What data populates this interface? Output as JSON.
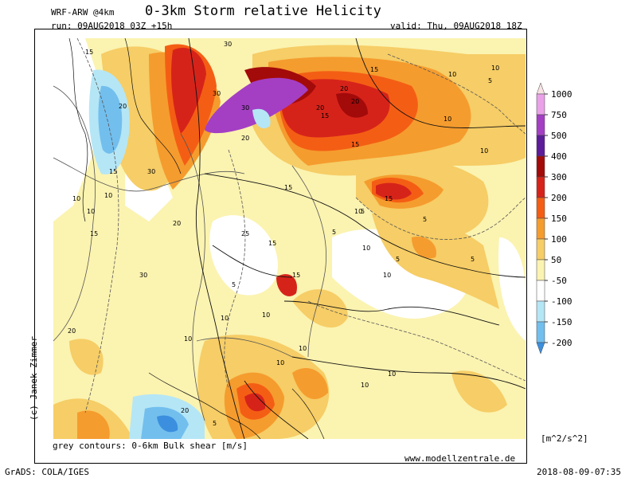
{
  "header": {
    "model": "WRF-ARW @4km",
    "title": "0-3km Storm relative Helicity",
    "run": "run: 09AUG2018 03Z +15h",
    "valid": "valid: Thu, 09AUG2018 18Z"
  },
  "footer": {
    "contours_note": "grey contours: 0-6km Bulk shear [m/s]",
    "website": "www.modellzentrale.de",
    "software": "GrADS: COLA/IGES",
    "timestamp": "2018-08-09-07:35",
    "credit": "(c) Janek Zimmer"
  },
  "colorbar": {
    "unit": "[m^2/s^2]",
    "levels": [
      "1000",
      "750",
      "500",
      "400",
      "300",
      "200",
      "150",
      "100",
      "50",
      "-50",
      "-100",
      "-150",
      "-200"
    ],
    "colors": [
      "#f7e3e4",
      "#eaa1e8",
      "#a43fc4",
      "#5d1c9a",
      "#a30a0a",
      "#d6231a",
      "#f45e14",
      "#f59c2e",
      "#f6cd66",
      "#fbf3b0",
      "#ffffff",
      "#b5e6f6",
      "#72bfee",
      "#3b8fde"
    ]
  },
  "contour_labels": [
    "30",
    "30",
    "30",
    "30",
    "30",
    "25",
    "20",
    "20",
    "20",
    "20",
    "20",
    "20",
    "20",
    "20",
    "15",
    "15",
    "15",
    "15",
    "15",
    "15",
    "15",
    "15",
    "15",
    "15",
    "10",
    "10",
    "10",
    "10",
    "10",
    "10",
    "10",
    "10",
    "10",
    "10",
    "10",
    "10",
    "10",
    "10",
    "10",
    "10",
    "10",
    "5",
    "5",
    "5",
    "5",
    "5",
    "5",
    "5",
    "5"
  ]
}
